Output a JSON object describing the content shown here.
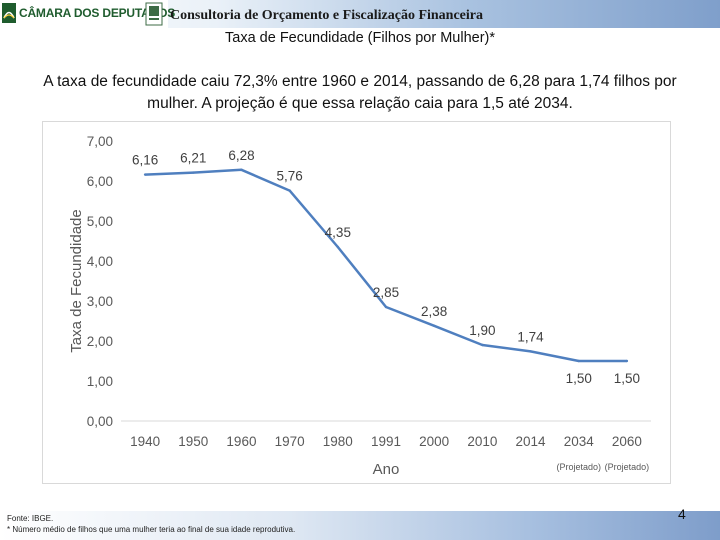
{
  "header": {
    "logo_text": "CÂMARA DOS DEPUTADOS",
    "title": "Consultoria de Orçamento e Fiscalização Financeira"
  },
  "slide": {
    "title": "Taxa de Fecundidade (Filhos por Mulher)*",
    "text": "A taxa de fecundidade caiu 72,3% entre 1960 e 2014, passando de 6,28 para 1,74 filhos por mulher. A projeção é que essa relação caia para 1,5 até 2034."
  },
  "chart_data": {
    "type": "line",
    "title": "",
    "xlabel": "Ano",
    "ylabel": "Taxa de Fecundidade",
    "categories": [
      "1940",
      "1950",
      "1960",
      "1970",
      "1980",
      "1991",
      "2000",
      "2010",
      "2014",
      "2034",
      "2060"
    ],
    "category_notes": [
      "",
      "",
      "",
      "",
      "",
      "",
      "",
      "",
      "",
      "(Projetado)",
      "(Projetado)"
    ],
    "series": [
      {
        "name": "Taxa de Fecundidade",
        "values": [
          6.16,
          6.21,
          6.28,
          5.76,
          4.35,
          2.85,
          2.38,
          1.9,
          1.74,
          1.5,
          1.5
        ],
        "labels": [
          "6,16",
          "6,21",
          "6,28",
          "5,76",
          "4,35",
          "2,85",
          "2,38",
          "1,90",
          "1,74",
          "1,50",
          "1,50"
        ],
        "color": "#4f7fbf"
      }
    ],
    "ylim": [
      0,
      7
    ],
    "yticks": [
      0,
      1,
      2,
      3,
      4,
      5,
      6,
      7
    ],
    "ytick_labels": [
      "0,00",
      "1,00",
      "2,00",
      "3,00",
      "4,00",
      "5,00",
      "6,00",
      "7,00"
    ],
    "grid": false
  },
  "footer": {
    "source": "Fonte: IBGE.",
    "note": "* Número médio de filhos que uma mulher teria ao final de sua idade reprodutiva.",
    "page_number": "4"
  },
  "colors": {
    "line": "#4f7fbf",
    "axis_text": "#595959",
    "label_text": "#404040"
  }
}
